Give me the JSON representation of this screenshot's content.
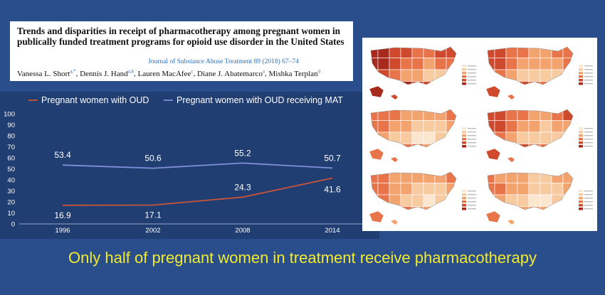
{
  "citation": {
    "title": "Trends and disparities in receipt of pharmacotherapy among pregnant women in publically funded treatment programs for opioid use disorder in the United States",
    "journal": "Journal of Substance Abuse Treatment 89 (2018) 67–74",
    "authors": [
      {
        "name": "Vanessa L. Short",
        "sup": "a,*"
      },
      {
        "name": "Dennis J. Hand",
        "sup": "a,b"
      },
      {
        "name": "Lauren MacAfee",
        "sup": "c"
      },
      {
        "name": "Diane J. Abatemarco",
        "sup": "a"
      },
      {
        "name": "Mishka Terplan",
        "sup": "d"
      }
    ]
  },
  "chart_data": {
    "type": "line",
    "x": [
      "1996",
      "2002",
      "2008",
      "2014"
    ],
    "ylim": [
      0,
      100
    ],
    "yticks": [
      0,
      10,
      20,
      30,
      40,
      50,
      60,
      70,
      80,
      90,
      100
    ],
    "grid": false,
    "legend_position": "top",
    "series": [
      {
        "name": "Pregnant women with OUD",
        "color": "#c8553a",
        "values": [
          16.9,
          17.1,
          24.3,
          41.6
        ],
        "labels": [
          "16.9",
          "17.1",
          "24.3",
          "41.6"
        ]
      },
      {
        "name": "Pregnant women with OUD receiving MAT",
        "color": "#7f8fd8",
        "values": [
          53.4,
          50.6,
          55.2,
          50.7
        ],
        "labels": [
          "53.4",
          "50.6",
          "55.2",
          "50.7"
        ]
      }
    ]
  },
  "maps": {
    "count": 6,
    "colors": [
      "#fbe6cf",
      "#f7caa0",
      "#f2a36e",
      "#e8744a",
      "#cf4a2c",
      "#a82a1c"
    ]
  },
  "caption": "Only half of pregnant women in treatment receive pharmacotherapy"
}
